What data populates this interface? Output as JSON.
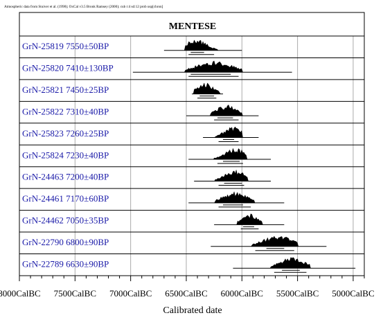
{
  "chart_data": {
    "type": "oxcal-multiplot",
    "header": "Atmospheric data from Stuiver et al. (1998); OxCal v3.5 Bronk Ramsey (2000); cub r:4 sd:12 prob usp[chron]",
    "title": "MENTESE",
    "xlabel": "Calibrated date",
    "x_ticks": [
      "8000CalBC",
      "7500CalBC",
      "7000CalBC",
      "6500CalBC",
      "6000CalBC",
      "5500CalBC",
      "5000CalBC"
    ],
    "x_tick_values": [
      8000,
      7500,
      7000,
      6500,
      6000,
      5500,
      5000
    ],
    "xlim": [
      8000,
      4900
    ],
    "x_grid_minor_step": 100,
    "samples": [
      {
        "lab": "GrN-25819",
        "date": "7550±50BP",
        "peak_bc": 6410,
        "range68": [
          6460,
          6340
        ],
        "range95": [
          6480,
          6250
        ],
        "extent": [
          6700,
          6000
        ]
      },
      {
        "lab": "GrN-25820",
        "date": "7410±130BP",
        "peak_bc": 6250,
        "range68": [
          6460,
          6100
        ],
        "range95": [
          6480,
          6030
        ],
        "extent": [
          6980,
          5550
        ]
      },
      {
        "lab": "GrN-25821",
        "date": "7450±25BP",
        "peak_bc": 6330,
        "range68": [
          6380,
          6250
        ],
        "range95": [
          6400,
          6230
        ],
        "extent": [
          6450,
          6170
        ]
      },
      {
        "lab": "GrN-25822",
        "date": "7310±40BP",
        "peak_bc": 6140,
        "range68": [
          6220,
          6080
        ],
        "range95": [
          6250,
          6030
        ],
        "extent": [
          6500,
          5850
        ]
      },
      {
        "lab": "GrN-25823",
        "date": "7260±25BP",
        "peak_bc": 6080,
        "range68": [
          6170,
          6070
        ],
        "range95": [
          6210,
          6030
        ],
        "extent": [
          6350,
          5850
        ]
      },
      {
        "lab": "GrN-25824",
        "date": "7230±40BP",
        "peak_bc": 6060,
        "range68": [
          6170,
          6020
        ],
        "range95": [
          6220,
          5990
        ],
        "extent": [
          6480,
          5740
        ]
      },
      {
        "lab": "GrN-24463",
        "date": "7200±40BP",
        "peak_bc": 6060,
        "range68": [
          6160,
          6000
        ],
        "range95": [
          6210,
          5980
        ],
        "extent": [
          6430,
          5740
        ]
      },
      {
        "lab": "GrN-24461",
        "date": "7170±60BP",
        "peak_bc": 6060,
        "range68": [
          6170,
          5990
        ],
        "range95": [
          6210,
          5920
        ],
        "extent": [
          6480,
          5620
        ]
      },
      {
        "lab": "GrN-24462",
        "date": "7050±35BP",
        "peak_bc": 5930,
        "range68": [
          5990,
          5890
        ],
        "range95": [
          6010,
          5850
        ],
        "extent": [
          6250,
          5620
        ]
      },
      {
        "lab": "GrN-22790",
        "date": "6800±90BP",
        "peak_bc": 5680,
        "range68": [
          5780,
          5620
        ],
        "range95": [
          5880,
          5530
        ],
        "extent": [
          6280,
          5240
        ]
      },
      {
        "lab": "GrN-22789",
        "date": "6630±90BP",
        "peak_bc": 5550,
        "range68": [
          5640,
          5480
        ],
        "range95": [
          5710,
          5420
        ],
        "extent": [
          6080,
          4980
        ]
      }
    ]
  }
}
